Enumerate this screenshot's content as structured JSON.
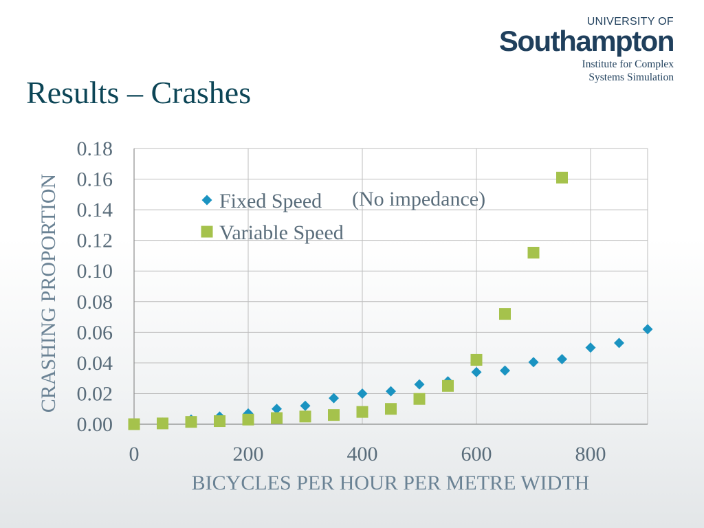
{
  "logo": {
    "top": "UNIVERSITY OF",
    "main": "Southampton",
    "sub_line1": "Institute for Complex",
    "sub_line2": "Systems Simulation"
  },
  "slide": {
    "title": "Results – Crashes"
  },
  "chart_data": {
    "type": "scatter",
    "xlabel": "BICYCLES PER HOUR PER METRE WIDTH",
    "ylabel": "CRASHING PROPORTION",
    "xlim": [
      0,
      900
    ],
    "ylim": [
      0,
      0.18
    ],
    "xticks": [
      0,
      200,
      400,
      600,
      800
    ],
    "xtick_labels": [
      "0",
      "200",
      "400",
      "600",
      "800"
    ],
    "yticks": [
      0,
      0.02,
      0.04,
      0.06,
      0.08,
      0.1,
      0.12,
      0.14,
      0.16,
      0.18
    ],
    "ytick_labels": [
      "0.00",
      "0.02",
      "0.04",
      "0.06",
      "0.08",
      "0.10",
      "0.12",
      "0.14",
      "0.16",
      "0.18"
    ],
    "grid": true,
    "legend_position": "top-center",
    "legend_note": "(No impedance)",
    "series": [
      {
        "name": "Fixed Speed",
        "marker": "diamond",
        "color": "#1a93c1",
        "x": [
          0,
          50,
          100,
          150,
          200,
          250,
          300,
          350,
          400,
          450,
          500,
          550,
          600,
          650,
          700,
          750,
          800,
          850,
          900
        ],
        "y": [
          0.0,
          0.001,
          0.003,
          0.005,
          0.007,
          0.01,
          0.012,
          0.017,
          0.02,
          0.0215,
          0.026,
          0.028,
          0.034,
          0.035,
          0.0405,
          0.0425,
          0.05,
          0.053,
          0.062
        ]
      },
      {
        "name": "Variable Speed",
        "marker": "square",
        "color": "#a5c24c",
        "x": [
          0,
          50,
          100,
          150,
          200,
          250,
          300,
          350,
          400,
          450,
          500,
          550,
          600,
          650,
          700,
          750
        ],
        "y": [
          0.0,
          0.0005,
          0.0015,
          0.002,
          0.003,
          0.004,
          0.005,
          0.006,
          0.008,
          0.01,
          0.0165,
          0.025,
          0.042,
          0.072,
          0.112,
          0.161
        ]
      }
    ]
  }
}
